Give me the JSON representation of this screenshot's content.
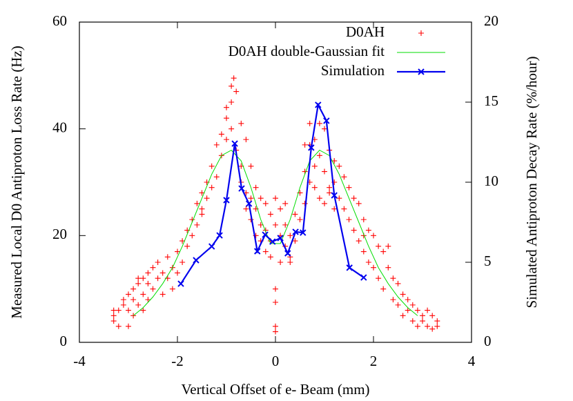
{
  "chart_data": {
    "type": "scatter",
    "x_label": "Vertical Offset of e- Beam (mm)",
    "y_label": "Measured Local D0 Antiproton Loss Rate (Hz)",
    "y2_label": "Simulated Antiproton Decay Rate (%/hour)",
    "xlim": [
      -4,
      4
    ],
    "xticks": [
      -4,
      -2,
      0,
      2,
      4
    ],
    "ylim": [
      0,
      60
    ],
    "yticks": [
      0,
      20,
      40,
      60
    ],
    "y2lim": [
      0,
      20
    ],
    "y2ticks": [
      0,
      5,
      10,
      15,
      20
    ],
    "legend": "top-right",
    "series": [
      {
        "name": "D0AH",
        "type": "scatter",
        "color": "#ff0000",
        "x": [
          -3.3,
          -3.3,
          -3.3,
          -3.2,
          -3.2,
          -3.1,
          -3.1,
          -3.0,
          -3.0,
          -3.0,
          -2.9,
          -2.9,
          -2.9,
          -2.8,
          -2.8,
          -2.8,
          -2.7,
          -2.7,
          -2.7,
          -2.6,
          -2.6,
          -2.6,
          -2.5,
          -2.5,
          -2.4,
          -2.4,
          -2.3,
          -2.3,
          -2.2,
          -2.2,
          -2.1,
          -2.1,
          -2.0,
          -2.0,
          -1.9,
          -1.9,
          -1.8,
          -1.8,
          -1.7,
          -1.7,
          -1.6,
          -1.6,
          -1.5,
          -1.5,
          -1.5,
          -1.4,
          -1.4,
          -1.3,
          -1.3,
          -1.2,
          -1.2,
          -1.1,
          -1.1,
          -1.0,
          -1.0,
          -1.0,
          -0.9,
          -0.9,
          -0.9,
          -0.85,
          -0.8,
          -0.8,
          -0.7,
          -0.7,
          -0.7,
          -0.6,
          -0.6,
          -0.6,
          -0.5,
          -0.5,
          -0.5,
          -0.4,
          -0.4,
          -0.4,
          -0.3,
          -0.3,
          -0.3,
          -0.2,
          -0.2,
          -0.2,
          -0.1,
          -0.1,
          -0.1,
          0,
          0,
          0,
          0,
          0,
          0,
          0.1,
          0.1,
          0.1,
          0.2,
          0.2,
          0.2,
          0.3,
          0.3,
          0.3,
          0.4,
          0.4,
          0.5,
          0.5,
          0.6,
          0.6,
          0.6,
          0.7,
          0.7,
          0.7,
          0.8,
          0.8,
          0.8,
          0.9,
          0.9,
          0.9,
          1.0,
          1.0,
          1.0,
          1.1,
          1.1,
          1.1,
          1.2,
          1.2,
          1.2,
          1.3,
          1.3,
          1.4,
          1.4,
          1.5,
          1.5,
          1.6,
          1.6,
          1.7,
          1.7,
          1.8,
          1.8,
          1.8,
          1.9,
          1.9,
          2.0,
          2.0,
          2.1,
          2.1,
          2.2,
          2.2,
          2.3,
          2.3,
          2.4,
          2.4,
          2.5,
          2.5,
          2.6,
          2.6,
          2.7,
          2.7,
          2.8,
          2.8,
          2.9,
          2.9,
          3.0,
          3.0,
          3.1,
          3.1,
          3.2,
          3.2,
          3.3,
          3.3
        ],
        "values": [
          4,
          5,
          6,
          3,
          6,
          8,
          7,
          3,
          9,
          6,
          10,
          8,
          5,
          11,
          7,
          12,
          9,
          6,
          12,
          11,
          13,
          8,
          14,
          10,
          12,
          15,
          13,
          9,
          16,
          12,
          14,
          10,
          17,
          13,
          19,
          15,
          21,
          18,
          23,
          20,
          26,
          22,
          28,
          25,
          24,
          30,
          27,
          33,
          29,
          37,
          31,
          39,
          35,
          42,
          38,
          44,
          45,
          40,
          48,
          49.5,
          47,
          36,
          41,
          33,
          30,
          38,
          28,
          25,
          33,
          27,
          23,
          29,
          25,
          20,
          27,
          22,
          19,
          26,
          21,
          17,
          24,
          19,
          16,
          27,
          22,
          10,
          7.5,
          3,
          2,
          25,
          20,
          15,
          26,
          18,
          22,
          20,
          16,
          15,
          24,
          19,
          28,
          23,
          32,
          26,
          37,
          37,
          30,
          41,
          38,
          33,
          29,
          41,
          35,
          27,
          40,
          32,
          26,
          36,
          29,
          28,
          34,
          30,
          25,
          33,
          27,
          31,
          25,
          29,
          23,
          27,
          21,
          26,
          19,
          23,
          17,
          20,
          21,
          15,
          20,
          14,
          18,
          12,
          17,
          10,
          14,
          18,
          12,
          8,
          11,
          7,
          9,
          5,
          8,
          6,
          7,
          4,
          6,
          3,
          5,
          4,
          6,
          3,
          5,
          2.5,
          3,
          4
        ]
      },
      {
        "name": "D0AH double-Gaussian fit",
        "type": "line",
        "color": "#00dd00",
        "x": [
          -2.9,
          -2.7,
          -2.5,
          -2.3,
          -2.1,
          -1.9,
          -1.7,
          -1.5,
          -1.3,
          -1.1,
          -0.9,
          -0.7,
          -0.5,
          -0.3,
          -0.1,
          0.1,
          0.3,
          0.5,
          0.7,
          0.9,
          1.1,
          1.3,
          1.5,
          1.7,
          1.9,
          2.1,
          2.3,
          2.5,
          2.7,
          2.9
        ],
        "values": [
          5,
          6.5,
          8.5,
          11,
          14,
          18,
          22.5,
          27,
          31.5,
          35,
          36,
          34,
          29,
          23,
          18.5,
          18.5,
          23,
          29,
          34,
          36,
          35,
          31.5,
          27,
          22.5,
          18,
          14,
          11,
          8.5,
          6.5,
          5
        ]
      },
      {
        "name": "Simulation",
        "type": "linepoints",
        "axis": "y2",
        "color": "#0000ee",
        "x": [
          -1.93,
          -1.62,
          -1.3,
          -1.14,
          -1.0,
          -0.83,
          -0.69,
          -0.54,
          -0.37,
          -0.21,
          -0.06,
          0.1,
          0.25,
          0.41,
          0.56,
          0.73,
          0.87,
          1.04,
          1.2,
          1.51,
          1.8
        ],
        "values": [
          3.66,
          5.13,
          5.99,
          6.68,
          8.88,
          12.41,
          9.61,
          8.66,
          5.69,
          6.72,
          6.29,
          6.51,
          5.56,
          6.9,
          6.85,
          12.16,
          14.83,
          13.84,
          9.18,
          4.66,
          4.05
        ]
      }
    ]
  }
}
